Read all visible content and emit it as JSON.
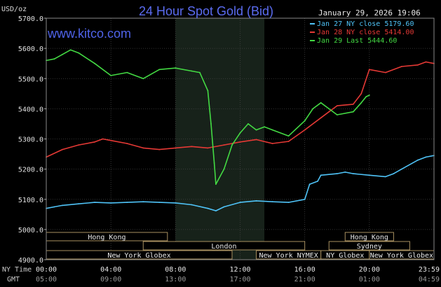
{
  "header": {
    "title": "24 Hour Spot Gold (Bid)",
    "unit": "USD/oz",
    "timestamp": "January 29, 2026 19:06",
    "website": "www.kitco.com"
  },
  "legend": [
    {
      "label": "Jan 27 NY close 5179.60",
      "color": "#4fc3f7"
    },
    {
      "label": "Jan 28 NY close 5414.00",
      "color": "#e53935"
    },
    {
      "label": "Jan 29 Last 5444.60",
      "color": "#43d943"
    }
  ],
  "market_sessions": [
    {
      "name": "Hong Kong",
      "start": -0.5,
      "end": 7.5,
      "row": 0
    },
    {
      "name": "London",
      "start": 6.0,
      "end": 16.0,
      "row": 1
    },
    {
      "name": "New York Globex",
      "start": -0.5,
      "end": 11.5,
      "row": 2
    },
    {
      "name": "New York NYMEX",
      "start": 13.0,
      "end": 17.0,
      "row": 2
    },
    {
      "name": "NY Globex",
      "start": 17.0,
      "end": 20.0,
      "row": 2
    },
    {
      "name": "Hong Kong",
      "start": 18.5,
      "end": 21.5,
      "row": 0
    },
    {
      "name": "Sydney",
      "start": 17.5,
      "end": 22.5,
      "row": 1
    },
    {
      "name": "New York Globex",
      "start": 20.0,
      "end": 24.5,
      "row": 2
    }
  ],
  "axis_row_labels": {
    "ny": "NY Time",
    "gmt": "GMT"
  },
  "gmt_ticks": [
    "05:00",
    "09:00",
    "13:00",
    "17:00",
    "21:00",
    "01:00",
    "04:59"
  ],
  "chart_data": {
    "type": "line",
    "title": "24 Hour Spot Gold (Bid)",
    "ylabel": "USD/oz",
    "xlabel": "NY Time",
    "ylim": [
      4900,
      5700
    ],
    "xlim": [
      0,
      24
    ],
    "yticks": [
      "5700.0",
      "5600.0",
      "5500.0",
      "5400.0",
      "5300.0",
      "5200.0",
      "5100.0",
      "5000.0",
      "4900.0"
    ],
    "xticks": [
      "00:00",
      "04:00",
      "08:00",
      "12:00",
      "16:00",
      "20:00",
      "23:59"
    ],
    "highlight_range_hours": [
      8.0,
      13.5
    ],
    "grid": true,
    "legend_position": "top-right",
    "series": [
      {
        "name": "Jan 27 NY close 5179.60",
        "color": "#4fc3f7",
        "points": [
          [
            0,
            5070
          ],
          [
            0.5,
            5075
          ],
          [
            1,
            5080
          ],
          [
            2,
            5085
          ],
          [
            3,
            5090
          ],
          [
            4,
            5088
          ],
          [
            5,
            5090
          ],
          [
            6,
            5092
          ],
          [
            7,
            5090
          ],
          [
            8,
            5088
          ],
          [
            9,
            5082
          ],
          [
            10,
            5070
          ],
          [
            10.5,
            5062
          ],
          [
            11,
            5075
          ],
          [
            12,
            5090
          ],
          [
            13,
            5095
          ],
          [
            14,
            5092
          ],
          [
            15,
            5090
          ],
          [
            16,
            5100
          ],
          [
            16.3,
            5150
          ],
          [
            16.8,
            5160
          ],
          [
            17,
            5180
          ],
          [
            18,
            5185
          ],
          [
            18.5,
            5190
          ],
          [
            19,
            5185
          ],
          [
            20,
            5180
          ],
          [
            21,
            5175
          ],
          [
            21.5,
            5185
          ],
          [
            22,
            5200
          ],
          [
            23,
            5230
          ],
          [
            23.5,
            5240
          ],
          [
            24,
            5245
          ]
        ]
      },
      {
        "name": "Jan 28 NY close 5414.00",
        "color": "#e53935",
        "points": [
          [
            0,
            5240
          ],
          [
            1,
            5265
          ],
          [
            2,
            5280
          ],
          [
            3,
            5290
          ],
          [
            3.5,
            5300
          ],
          [
            4,
            5295
          ],
          [
            5,
            5285
          ],
          [
            6,
            5270
          ],
          [
            7,
            5265
          ],
          [
            8,
            5270
          ],
          [
            9,
            5275
          ],
          [
            10,
            5270
          ],
          [
            11,
            5280
          ],
          [
            12,
            5290
          ],
          [
            13,
            5298
          ],
          [
            14,
            5285
          ],
          [
            15,
            5292
          ],
          [
            16,
            5330
          ],
          [
            17,
            5370
          ],
          [
            17.5,
            5390
          ],
          [
            18,
            5410
          ],
          [
            19,
            5415
          ],
          [
            19.5,
            5450
          ],
          [
            20,
            5530
          ],
          [
            21,
            5520
          ],
          [
            22,
            5540
          ],
          [
            23,
            5545
          ],
          [
            23.5,
            5555
          ],
          [
            24,
            5550
          ]
        ]
      },
      {
        "name": "Jan 29 Last 5444.60",
        "color": "#43d943",
        "points": [
          [
            0,
            5560
          ],
          [
            0.5,
            5565
          ],
          [
            1,
            5580
          ],
          [
            1.5,
            5595
          ],
          [
            2,
            5585
          ],
          [
            3,
            5550
          ],
          [
            4,
            5510
          ],
          [
            5,
            5520
          ],
          [
            6,
            5500
          ],
          [
            7,
            5530
          ],
          [
            8,
            5535
          ],
          [
            9,
            5525
          ],
          [
            9.5,
            5520
          ],
          [
            10,
            5460
          ],
          [
            10.2,
            5350
          ],
          [
            10.4,
            5220
          ],
          [
            10.5,
            5150
          ],
          [
            11,
            5200
          ],
          [
            11.5,
            5280
          ],
          [
            12,
            5320
          ],
          [
            12.5,
            5350
          ],
          [
            13,
            5330
          ],
          [
            13.5,
            5340
          ],
          [
            14,
            5330
          ],
          [
            15,
            5310
          ],
          [
            16,
            5360
          ],
          [
            16.5,
            5400
          ],
          [
            17,
            5420
          ],
          [
            17.5,
            5400
          ],
          [
            18,
            5380
          ],
          [
            19,
            5390
          ],
          [
            19.5,
            5420
          ],
          [
            19.8,
            5440
          ],
          [
            20,
            5445
          ]
        ]
      }
    ]
  }
}
